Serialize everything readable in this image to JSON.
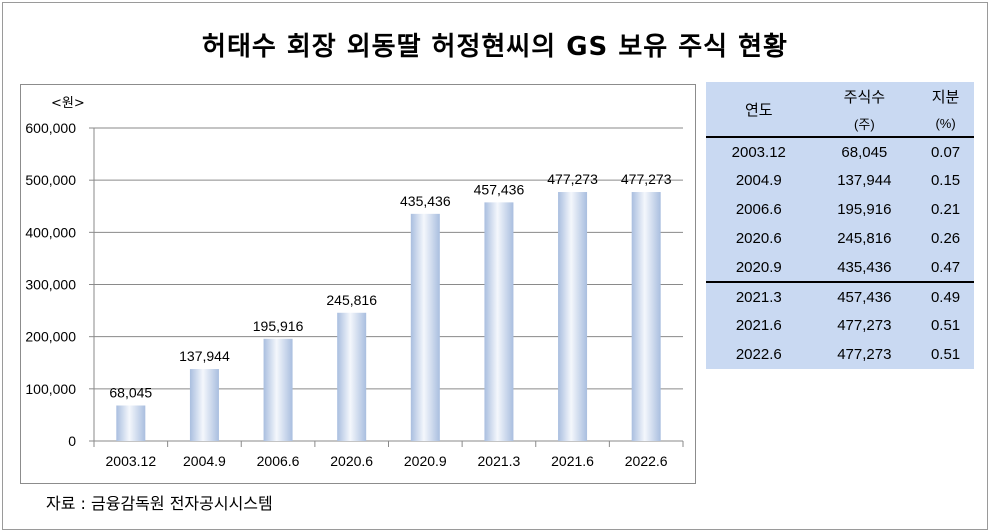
{
  "title": "허태수 회장 외동딸 허정현씨의 GS 보유 주식 현황",
  "source": "자료 : 금융감독원 전자공시시스템",
  "chart_data": {
    "type": "bar",
    "unit_label": "<원>",
    "categories": [
      "2003.12",
      "2004.9",
      "2006.6",
      "2020.6",
      "2020.9",
      "2021.3",
      "2021.6",
      "2022.6"
    ],
    "values": [
      68045,
      137944,
      195916,
      245816,
      435436,
      457436,
      477273,
      477273
    ],
    "value_labels": [
      "68,045",
      "137,944",
      "195,916",
      "245,816",
      "435,436",
      "457,436",
      "477,273",
      "477,273"
    ],
    "ylim": [
      0,
      600000
    ],
    "yticks": [
      0,
      100000,
      200000,
      300000,
      400000,
      500000,
      600000
    ],
    "ytick_labels": [
      "0",
      "100,000",
      "200,000",
      "300,000",
      "400,000",
      "500,000",
      "600,000"
    ],
    "grid": true,
    "bar_color_light": "#f4f7fc",
    "bar_color_dark": "#a9bedf"
  },
  "table": {
    "headers": {
      "year": "연도",
      "shares": "주식수",
      "shares_unit": "(주)",
      "stake": "지분",
      "stake_unit": "(%)"
    },
    "rows": [
      {
        "year": "2003.12",
        "shares": "68,045",
        "stake": "0.07"
      },
      {
        "year": "2004.9",
        "shares": "137,944",
        "stake": "0.15"
      },
      {
        "year": "2006.6",
        "shares": "195,916",
        "stake": "0.21"
      },
      {
        "year": "2020.6",
        "shares": "245,816",
        "stake": "0.26"
      },
      {
        "year": "2020.9",
        "shares": "435,436",
        "stake": "0.47"
      },
      {
        "year": "2021.3",
        "shares": "457,436",
        "stake": "0.49"
      },
      {
        "year": "2021.6",
        "shares": "477,273",
        "stake": "0.51"
      },
      {
        "year": "2022.6",
        "shares": "477,273",
        "stake": "0.51"
      }
    ],
    "background": "#c9d9f2"
  }
}
